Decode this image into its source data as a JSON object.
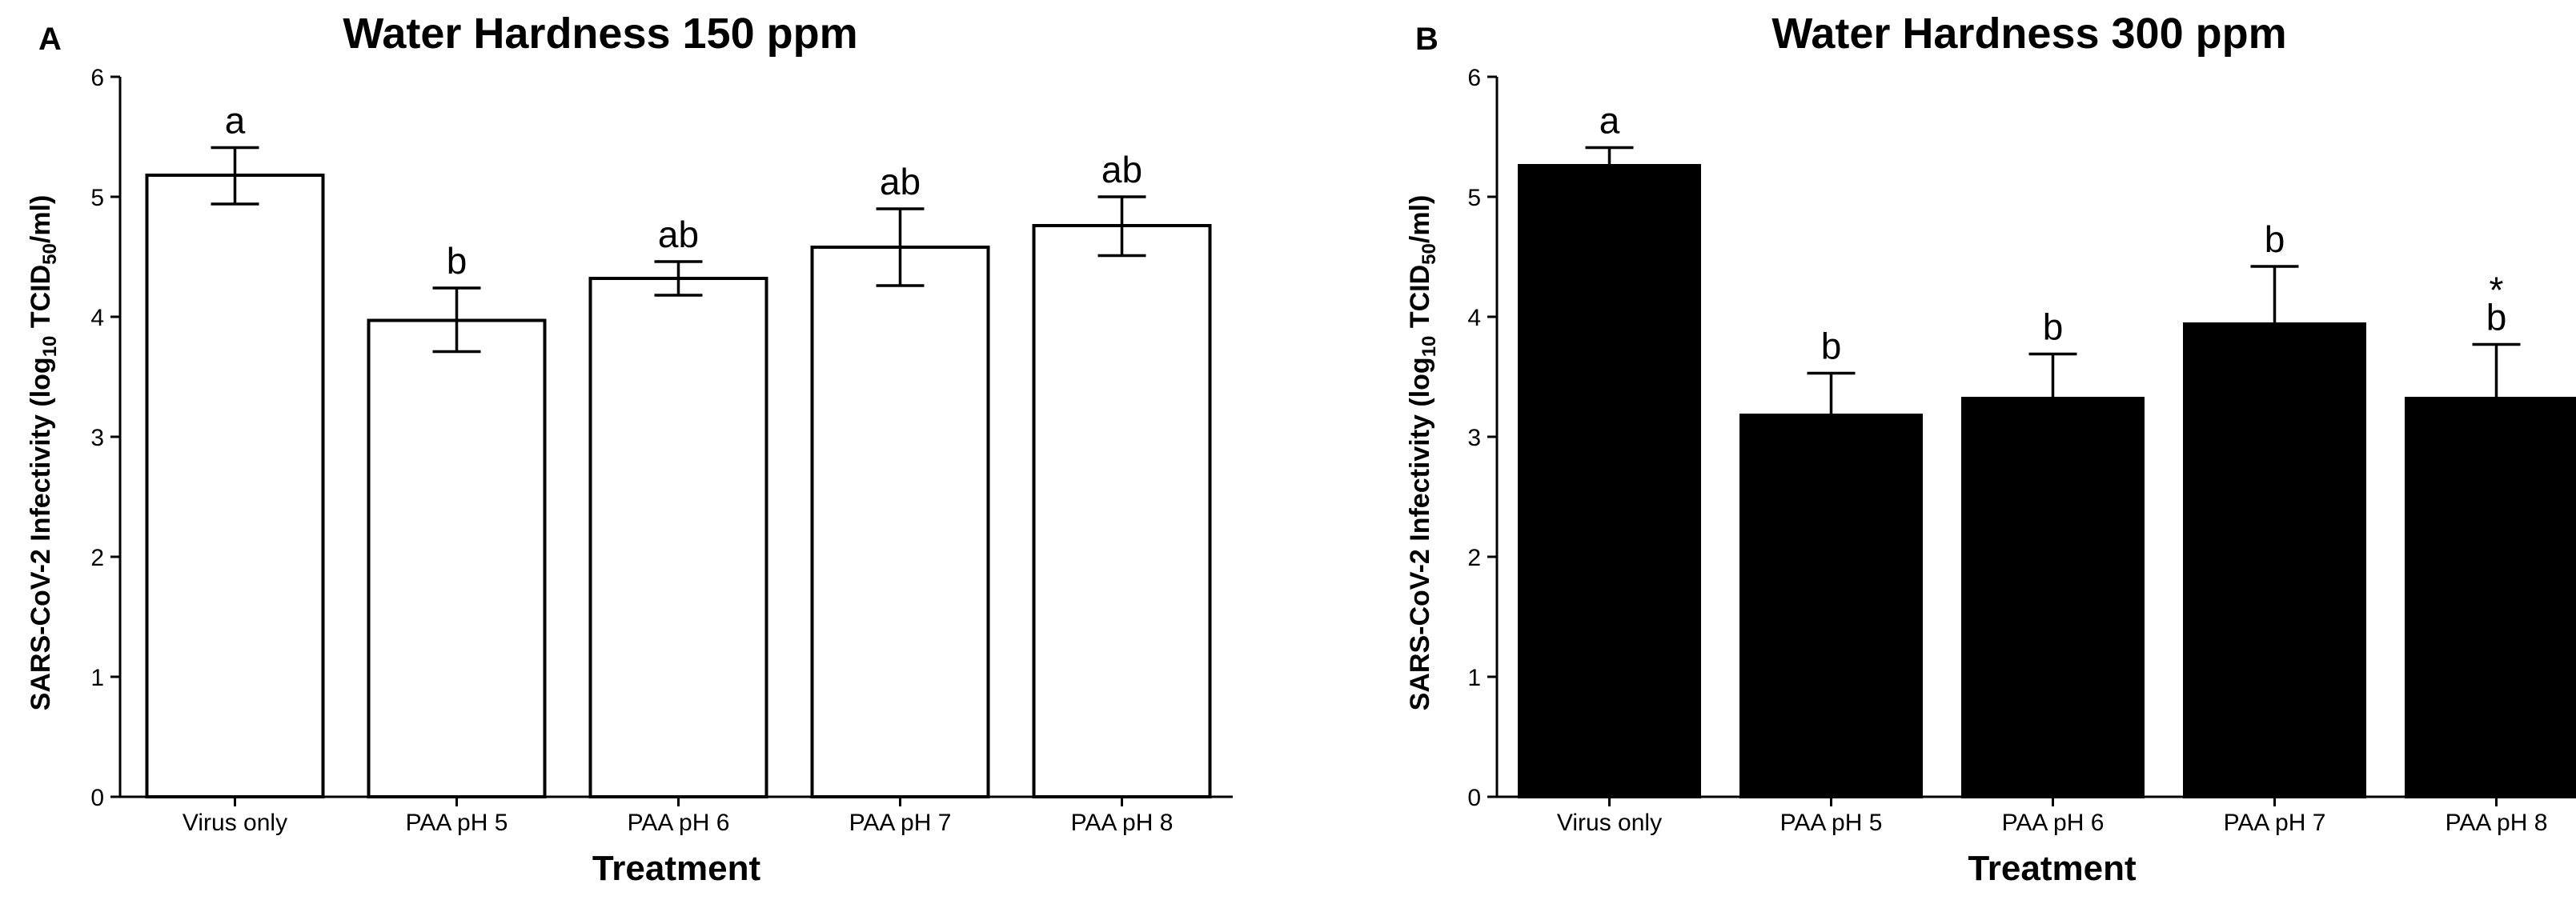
{
  "figure": {
    "xlabel": "Treatment",
    "ylabel_parts": [
      "SARS-CoV-2 Infectivity (log",
      "10",
      " TCID",
      "50",
      "/ml)"
    ]
  },
  "chart_data": [
    {
      "panel": "A",
      "type": "bar",
      "title": "Water Hardness 150 ppm",
      "xlabel": "Treatment",
      "ylabel": "SARS-CoV-2 Infectivity (log10 TCID50/ml)",
      "ylim": [
        0,
        6
      ],
      "yticks": [
        "0",
        "1",
        "2",
        "3",
        "4",
        "5",
        "6"
      ],
      "categories": [
        "Virus only",
        "PAA pH 5",
        "PAA pH 6",
        "PAA pH 7",
        "PAA pH 8"
      ],
      "values": [
        5.18,
        3.97,
        4.32,
        4.58,
        4.76
      ],
      "error_low": [
        4.94,
        3.71,
        4.18,
        4.26,
        4.51
      ],
      "error_high": [
        5.41,
        4.24,
        4.46,
        4.9,
        5.0
      ],
      "error_style": "both",
      "significance": [
        "a",
        "b",
        "ab",
        "ab",
        "ab"
      ],
      "bar_fill": "#ffffff",
      "bar_stroke": "#000000"
    },
    {
      "panel": "B",
      "type": "bar",
      "title": "Water Hardness 300 ppm",
      "xlabel": "Treatment",
      "ylabel": "SARS-CoV-2 Infectivity (log10 TCID50/ml)",
      "ylim": [
        0,
        6
      ],
      "yticks": [
        "0",
        "1",
        "2",
        "3",
        "4",
        "5",
        "6"
      ],
      "categories": [
        "Virus only",
        "PAA pH 5",
        "PAA pH 6",
        "PAA pH 7",
        "PAA pH 8"
      ],
      "values": [
        5.26,
        3.18,
        3.32,
        3.94,
        3.32
      ],
      "error_high": [
        5.41,
        3.53,
        3.69,
        4.42,
        3.77
      ],
      "error_style": "upper",
      "significance": [
        "a",
        "b",
        "b",
        "b",
        "b"
      ],
      "annotations": [
        "",
        "",
        "",
        "",
        "*"
      ],
      "bar_fill": "#000000",
      "bar_stroke": "#000000"
    }
  ]
}
